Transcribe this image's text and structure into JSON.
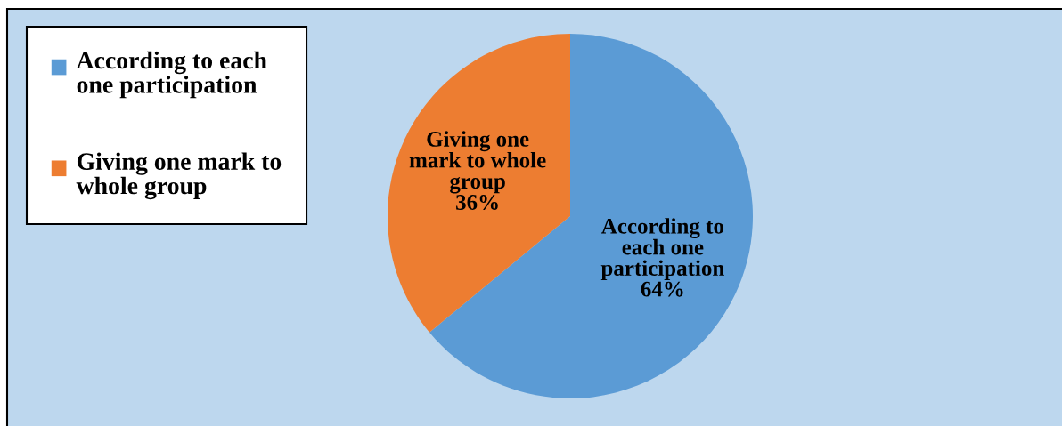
{
  "chart_data": {
    "type": "pie",
    "categories": [
      "According to each one participation",
      "Giving one mark to whole group"
    ],
    "values": [
      64,
      36
    ],
    "colors": [
      "#5b9bd5",
      "#ed7d31"
    ],
    "value_labels": [
      "64%",
      "36%"
    ],
    "legend": "top left"
  }
}
